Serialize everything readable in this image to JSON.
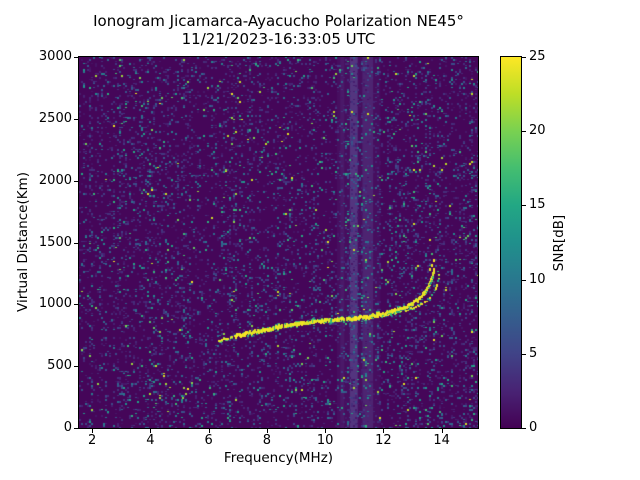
{
  "chart_data": {
    "type": "heatmap",
    "title": "Ionogram Jicamarca-Ayacucho Polarization NE45°",
    "subtitle": "11/21/2023-16:33:05 UTC",
    "xlabel": "Frequency(MHz)",
    "ylabel": "Virtual Distance(Km)",
    "xlim": [
      1.55,
      15.25
    ],
    "ylim": [
      0,
      3000
    ],
    "xticks": [
      2,
      4,
      6,
      8,
      10,
      12,
      14
    ],
    "yticks": [
      0,
      500,
      1000,
      1500,
      2000,
      2500,
      3000
    ],
    "colorbar": {
      "label": "SNR[dB]",
      "min": 0,
      "max": 25,
      "ticks": [
        0,
        5,
        10,
        15,
        20,
        25
      ],
      "colormap": "viridis"
    },
    "noise_floor_snr_db": 0,
    "noise": {
      "seed": 1337,
      "cell": 2,
      "density": 0.18
    },
    "interference_bands": [
      {
        "f_start": 10.4,
        "f_end": 11.9,
        "alpha": 0.1
      },
      {
        "f_start": 10.52,
        "f_end": 10.66,
        "alpha": 0.15
      },
      {
        "f_start": 10.85,
        "f_end": 11.12,
        "alpha": 0.5
      },
      {
        "f_start": 11.28,
        "f_end": 11.65,
        "alpha": 0.28
      }
    ],
    "echo_trace_o_mode": [
      [
        6.28,
        702
      ],
      [
        6.6,
        722
      ],
      [
        7.0,
        748
      ],
      [
        7.4,
        768
      ],
      [
        8.0,
        795
      ],
      [
        8.5,
        822
      ],
      [
        9.0,
        842
      ],
      [
        9.5,
        856
      ],
      [
        10.0,
        868
      ],
      [
        10.5,
        878
      ],
      [
        11.0,
        888
      ],
      [
        11.5,
        900
      ],
      [
        12.0,
        922
      ],
      [
        12.5,
        955
      ],
      [
        12.9,
        995
      ],
      [
        13.2,
        1045
      ],
      [
        13.4,
        1095
      ],
      [
        13.55,
        1155
      ],
      [
        13.65,
        1215
      ],
      [
        13.72,
        1278
      ]
    ],
    "echo_trace_x_mode": [
      [
        11.9,
        905
      ],
      [
        12.4,
        928
      ],
      [
        12.8,
        952
      ],
      [
        13.1,
        978
      ],
      [
        13.35,
        1008
      ],
      [
        13.55,
        1045
      ],
      [
        13.7,
        1090
      ],
      [
        13.8,
        1145
      ],
      [
        13.87,
        1215
      ],
      [
        13.9,
        1265
      ]
    ],
    "spread_dots": [
      [
        13.58,
        1290
      ],
      [
        13.63,
        1325
      ],
      [
        13.69,
        1368
      ]
    ],
    "sporadic_cluster": [
      [
        5.1,
        248
      ],
      [
        5.18,
        285
      ],
      [
        5.27,
        322
      ],
      [
        5.38,
        368
      ]
    ],
    "trace_peak_snr_db": 25
  },
  "colors": {
    "figure_background": "#ffffff",
    "axes_foreground": "#000000",
    "viridis_min": "#440154",
    "viridis_max": "#fde725"
  }
}
